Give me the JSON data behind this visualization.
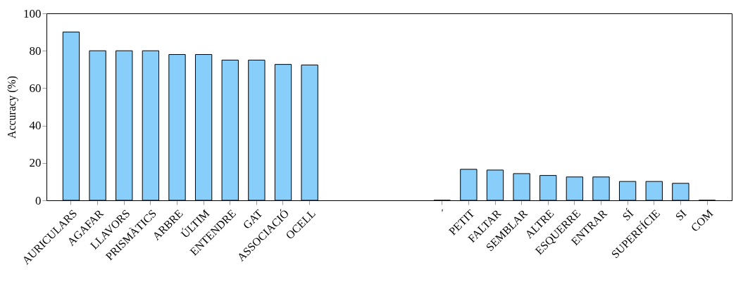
{
  "chart_data": {
    "type": "bar",
    "ylabel": "Accuracy (%)",
    "categories": [
      "AURICULARS",
      "AGAFAR",
      "LLAVORS",
      "PRISMÀTICS",
      "ARBRE",
      "ÚLTIM",
      "ENTENDRE",
      "GAT",
      "ASSOCIACIÓ",
      "OCELL",
      null,
      null,
      null,
      null,
      "´",
      "PETIT",
      "FALTAR",
      "SEMBLAR",
      "ALTRE",
      "ESQUERRE",
      "ENTRAR",
      "SÍ",
      "SUPERFÍCIE",
      "SI",
      "COM"
    ],
    "values": [
      90,
      80,
      80,
      80,
      78,
      78,
      75,
      75,
      72.7,
      72.4,
      null,
      null,
      null,
      null,
      0,
      16.6,
      16.2,
      14.3,
      13.3,
      12.5,
      12.5,
      10.1,
      10.1,
      9.1,
      0
    ],
    "color": "#87cefa",
    "ylim": [
      0,
      100
    ],
    "yticks": [
      0,
      20,
      40,
      60,
      80,
      100
    ],
    "grid": false
  }
}
